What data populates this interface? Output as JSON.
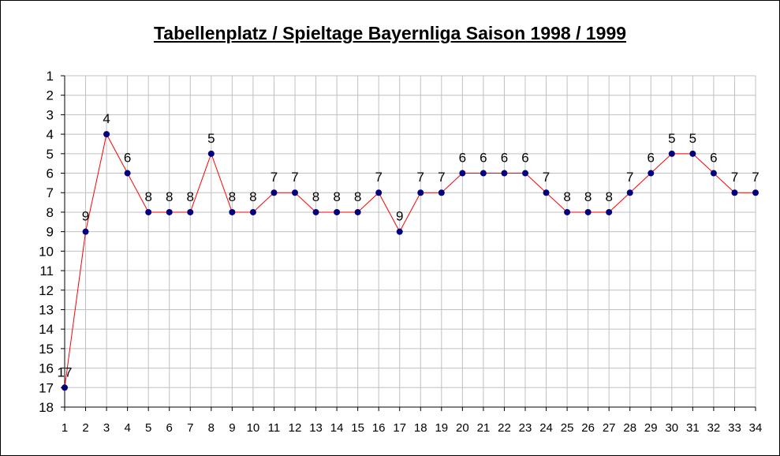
{
  "chart_data": {
    "type": "line",
    "title": "Tabellenplatz / Spieltage Bayernliga Saison 1998 / 1999",
    "xlabel": "",
    "ylabel": "",
    "x": [
      1,
      2,
      3,
      4,
      5,
      6,
      7,
      8,
      9,
      10,
      11,
      12,
      13,
      14,
      15,
      16,
      17,
      18,
      19,
      20,
      21,
      22,
      23,
      24,
      25,
      26,
      27,
      28,
      29,
      30,
      31,
      32,
      33,
      34
    ],
    "y_inverted": true,
    "ylim": [
      1,
      18
    ],
    "yticks": [
      1,
      2,
      3,
      4,
      5,
      6,
      7,
      8,
      9,
      10,
      11,
      12,
      13,
      14,
      15,
      16,
      17,
      18
    ],
    "grid": true,
    "legend": "none",
    "series": [
      {
        "values": [
          17,
          9,
          4,
          6,
          8,
          8,
          8,
          5,
          8,
          8,
          7,
          7,
          8,
          8,
          8,
          7,
          9,
          7,
          7,
          6,
          6,
          6,
          6,
          7,
          8,
          8,
          8,
          7,
          6,
          5,
          5,
          6,
          7,
          7
        ],
        "line_color": "#ff0000",
        "marker_color": "#000080",
        "data_labels": true
      }
    ],
    "colors": {
      "grid": "#c0c0c0",
      "axis": "#000000",
      "background": "#ffffff"
    }
  }
}
